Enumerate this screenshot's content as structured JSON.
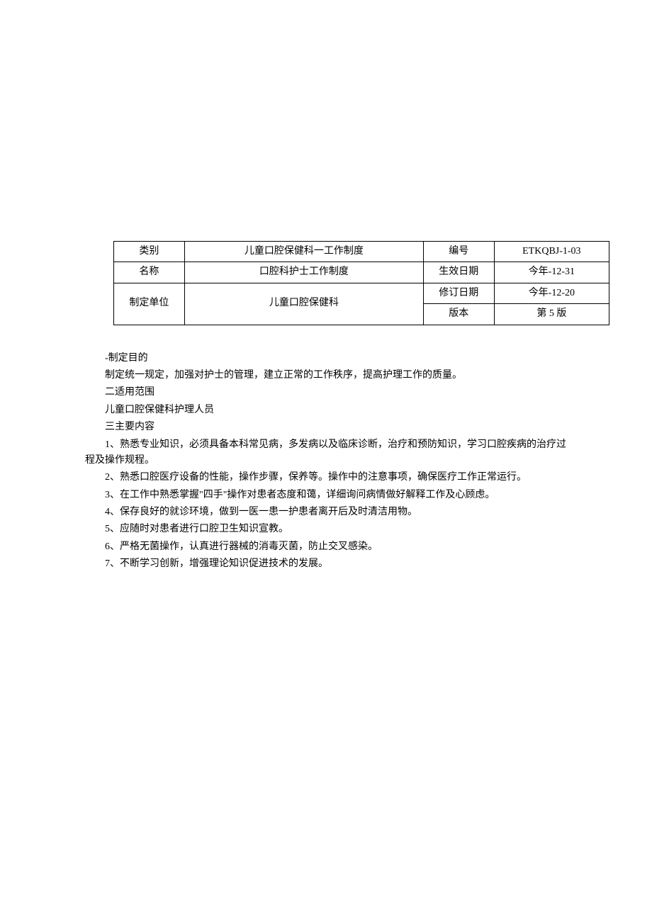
{
  "table": {
    "rows": [
      {
        "label": "类别",
        "main": "儿童口腔保健科一工作制度",
        "key": "编号",
        "val": "ETKQBJ-1-03"
      },
      {
        "label": "名称",
        "main": "口腔科护士工作制度",
        "key": "生效日期",
        "val": "今年-12-31"
      }
    ],
    "merged": {
      "label": "制定单位",
      "main": "儿童口腔保健科",
      "row1": {
        "key": "修订日期",
        "val": "今年-12-20"
      },
      "row2": {
        "key": "版本",
        "val": "第 5 版"
      }
    }
  },
  "sections": {
    "purpose_heading": "-制定目的",
    "purpose_text": "制定统一规定，加强对护士的管理，建立正常的工作秩序，提高护理工作的质量。",
    "scope_heading": "二适用范围",
    "scope_text": "儿童口腔保健科护理人员",
    "content_heading": "三主要内容",
    "items": [
      "1、熟悉专业知识，必须具备本科常见病，多发病以及临床诊断，治疗和预防知识，学习口腔疾病的治疗过程及操作规程。",
      "2、熟悉口腔医疗设备的性能，操作步骤，保养等。操作中的注意事项，确保医疗工作正常运行。",
      "3、在工作中熟悉掌握\"四手\"操作对患者态度和蔼，详细询问病情做好解释工作及心顾虑。",
      "4、保存良好的就诊环境，做到一医一患一护患者离开后及时清洁用物。",
      "5、应随时对患者进行口腔卫生知识宣教。",
      "6、严格无菌操作，认真进行器械的消毒灭菌，防止交叉感染。",
      "7、不断学习创新，增强理论知识促进技术的发展。"
    ]
  }
}
